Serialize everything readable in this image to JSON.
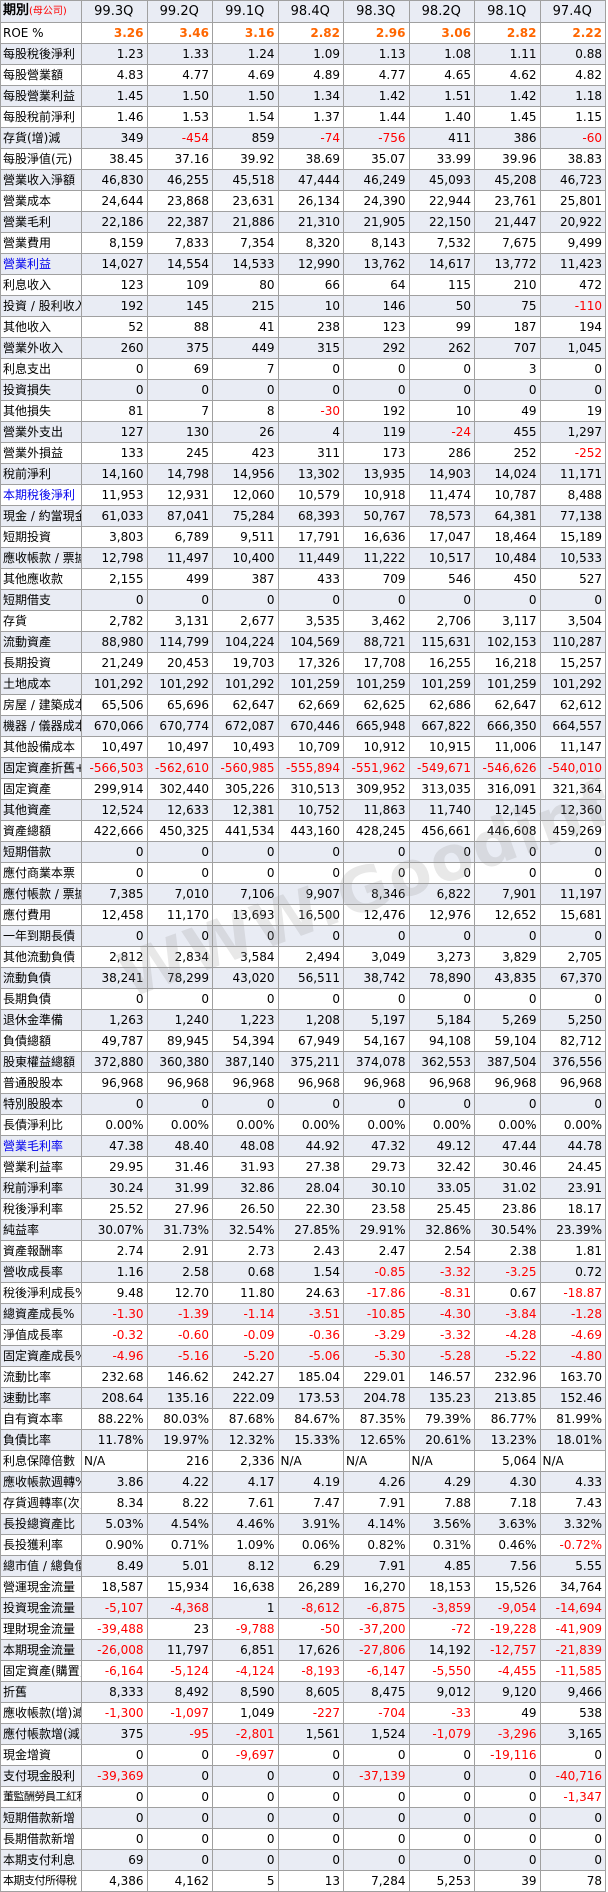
{
  "header": {
    "label": "期別",
    "sublabel": "(母公司)",
    "periods": [
      "99.3Q",
      "99.2Q",
      "99.1Q",
      "98.4Q",
      "98.3Q",
      "98.2Q",
      "98.1Q",
      "97.4Q"
    ]
  },
  "watermark": "WWW.Goodinfo.org",
  "colors": {
    "accent_orange": "#ff6600",
    "negative_red": "#ff0000",
    "link_blue": "#0000ee",
    "alt_row": "#e9ecf4"
  },
  "rows": [
    {
      "label": "ROE %",
      "values": [
        "3.26",
        "3.46",
        "3.16",
        "2.82",
        "2.96",
        "3.06",
        "2.82",
        "2.22"
      ],
      "roe": true
    },
    {
      "label": "每股稅後淨利",
      "values": [
        "1.23",
        "1.33",
        "1.24",
        "1.09",
        "1.13",
        "1.08",
        "1.11",
        "0.88"
      ]
    },
    {
      "label": "每股營業額",
      "values": [
        "4.83",
        "4.77",
        "4.69",
        "4.89",
        "4.77",
        "4.65",
        "4.62",
        "4.82"
      ]
    },
    {
      "label": "每股營業利益",
      "values": [
        "1.45",
        "1.50",
        "1.50",
        "1.34",
        "1.42",
        "1.51",
        "1.42",
        "1.18"
      ]
    },
    {
      "label": "每股稅前淨利",
      "values": [
        "1.46",
        "1.53",
        "1.54",
        "1.37",
        "1.44",
        "1.40",
        "1.45",
        "1.15"
      ]
    },
    {
      "label": "存貨(增)減",
      "values": [
        "349",
        "-454",
        "859",
        "-74",
        "-756",
        "411",
        "386",
        "-60"
      ]
    },
    {
      "label": "每股淨值(元)",
      "values": [
        "38.45",
        "37.16",
        "39.92",
        "38.69",
        "35.07",
        "33.99",
        "39.96",
        "38.83"
      ]
    },
    {
      "label": "營業收入淨額",
      "values": [
        "46,830",
        "46,255",
        "45,518",
        "47,444",
        "46,249",
        "45,093",
        "45,208",
        "46,723"
      ]
    },
    {
      "label": "營業成本",
      "values": [
        "24,644",
        "23,868",
        "23,631",
        "26,134",
        "24,390",
        "22,944",
        "23,761",
        "25,801"
      ]
    },
    {
      "label": "營業毛利",
      "values": [
        "22,186",
        "22,387",
        "21,886",
        "21,310",
        "21,905",
        "22,150",
        "21,447",
        "20,922"
      ]
    },
    {
      "label": "營業費用",
      "values": [
        "8,159",
        "7,833",
        "7,354",
        "8,320",
        "8,143",
        "7,532",
        "7,675",
        "9,499"
      ]
    },
    {
      "label": "營業利益",
      "values": [
        "14,027",
        "14,554",
        "14,533",
        "12,990",
        "13,762",
        "14,617",
        "13,772",
        "11,423"
      ],
      "blue": true
    },
    {
      "label": "利息收入",
      "values": [
        "123",
        "109",
        "80",
        "66",
        "64",
        "115",
        "210",
        "472"
      ]
    },
    {
      "label": "投資 / 股利收入",
      "values": [
        "192",
        "145",
        "215",
        "10",
        "146",
        "50",
        "75",
        "-110"
      ]
    },
    {
      "label": "其他收入",
      "values": [
        "52",
        "88",
        "41",
        "238",
        "123",
        "99",
        "187",
        "194"
      ]
    },
    {
      "label": "營業外收入",
      "values": [
        "260",
        "375",
        "449",
        "315",
        "292",
        "262",
        "707",
        "1,045"
      ]
    },
    {
      "label": "利息支出",
      "values": [
        "0",
        "69",
        "7",
        "0",
        "0",
        "0",
        "3",
        "0"
      ]
    },
    {
      "label": "投資損失",
      "values": [
        "0",
        "0",
        "0",
        "0",
        "0",
        "0",
        "0",
        "0"
      ]
    },
    {
      "label": "其他損失",
      "values": [
        "81",
        "7",
        "8",
        "-30",
        "192",
        "10",
        "49",
        "19"
      ]
    },
    {
      "label": "營業外支出",
      "values": [
        "127",
        "130",
        "26",
        "4",
        "119",
        "-24",
        "455",
        "1,297"
      ]
    },
    {
      "label": "營業外損益",
      "values": [
        "133",
        "245",
        "423",
        "311",
        "173",
        "286",
        "252",
        "-252"
      ]
    },
    {
      "label": "稅前淨利",
      "values": [
        "14,160",
        "14,798",
        "14,956",
        "13,302",
        "13,935",
        "14,903",
        "14,024",
        "11,171"
      ]
    },
    {
      "label": "本期稅後淨利",
      "values": [
        "11,953",
        "12,931",
        "12,060",
        "10,579",
        "10,918",
        "11,474",
        "10,787",
        "8,488"
      ],
      "blue": true
    },
    {
      "label": "現金 / 約當現金",
      "values": [
        "61,033",
        "87,041",
        "75,284",
        "68,393",
        "50,767",
        "78,573",
        "64,381",
        "77,138"
      ]
    },
    {
      "label": "短期投資",
      "values": [
        "3,803",
        "6,789",
        "9,511",
        "17,791",
        "16,636",
        "17,047",
        "18,464",
        "15,189"
      ]
    },
    {
      "label": "應收帳款 / 票據",
      "values": [
        "12,798",
        "11,497",
        "10,400",
        "11,449",
        "11,222",
        "10,517",
        "10,484",
        "10,533"
      ]
    },
    {
      "label": "其他應收款",
      "values": [
        "2,155",
        "499",
        "387",
        "433",
        "709",
        "546",
        "450",
        "527"
      ]
    },
    {
      "label": "短期借支",
      "values": [
        "0",
        "0",
        "0",
        "0",
        "0",
        "0",
        "0",
        "0"
      ]
    },
    {
      "label": "存貨",
      "values": [
        "2,782",
        "3,131",
        "2,677",
        "3,535",
        "3,462",
        "2,706",
        "3,117",
        "3,504"
      ]
    },
    {
      "label": "流動資產",
      "values": [
        "88,980",
        "114,799",
        "104,224",
        "104,569",
        "88,721",
        "115,631",
        "102,153",
        "110,287"
      ]
    },
    {
      "label": "長期投資",
      "values": [
        "21,249",
        "20,453",
        "19,703",
        "17,326",
        "17,708",
        "16,255",
        "16,218",
        "15,257"
      ]
    },
    {
      "label": "土地成本",
      "values": [
        "101,292",
        "101,292",
        "101,292",
        "101,259",
        "101,259",
        "101,259",
        "101,259",
        "101,292"
      ]
    },
    {
      "label": "房屋 / 建築成本",
      "values": [
        "65,506",
        "65,696",
        "62,647",
        "62,669",
        "62,625",
        "62,686",
        "62,647",
        "62,612"
      ]
    },
    {
      "label": "機器 / 儀器成本",
      "values": [
        "670,066",
        "670,774",
        "672,087",
        "670,446",
        "665,948",
        "667,822",
        "666,350",
        "664,557"
      ]
    },
    {
      "label": "其他設備成本",
      "values": [
        "10,497",
        "10,497",
        "10,493",
        "10,709",
        "10,912",
        "10,915",
        "11,006",
        "11,147"
      ]
    },
    {
      "label": "固定資產折舊+",
      "values": [
        "-566,503",
        "-562,610",
        "-560,985",
        "-555,894",
        "-551,962",
        "-549,671",
        "-546,626",
        "-540,010"
      ]
    },
    {
      "label": "固定資產",
      "values": [
        "299,914",
        "302,440",
        "305,226",
        "310,513",
        "309,952",
        "313,035",
        "316,091",
        "321,364"
      ]
    },
    {
      "label": "其他資產",
      "values": [
        "12,524",
        "12,633",
        "12,381",
        "10,752",
        "11,863",
        "11,740",
        "12,145",
        "12,360"
      ]
    },
    {
      "label": "資產總額",
      "values": [
        "422,666",
        "450,325",
        "441,534",
        "443,160",
        "428,245",
        "456,661",
        "446,608",
        "459,269"
      ]
    },
    {
      "label": "短期借款",
      "values": [
        "0",
        "0",
        "0",
        "0",
        "0",
        "0",
        "0",
        "0"
      ]
    },
    {
      "label": "應付商業本票",
      "values": [
        "0",
        "0",
        "0",
        "0",
        "0",
        "0",
        "0",
        "0"
      ]
    },
    {
      "label": "應付帳款 / 票據",
      "values": [
        "7,385",
        "7,010",
        "7,106",
        "9,907",
        "8,346",
        "6,822",
        "7,901",
        "11,197"
      ]
    },
    {
      "label": "應付費用",
      "values": [
        "12,458",
        "11,170",
        "13,693",
        "16,500",
        "12,476",
        "12,976",
        "12,652",
        "15,681"
      ]
    },
    {
      "label": "一年到期長債",
      "values": [
        "0",
        "0",
        "0",
        "0",
        "0",
        "0",
        "0",
        "0"
      ]
    },
    {
      "label": "其他流動負債",
      "values": [
        "2,812",
        "2,834",
        "3,584",
        "2,494",
        "3,049",
        "3,273",
        "3,829",
        "2,705"
      ]
    },
    {
      "label": "流動負債",
      "values": [
        "38,241",
        "78,299",
        "43,020",
        "56,511",
        "38,742",
        "78,890",
        "43,835",
        "67,370"
      ]
    },
    {
      "label": "長期負債",
      "values": [
        "0",
        "0",
        "0",
        "0",
        "0",
        "0",
        "0",
        "0"
      ]
    },
    {
      "label": "退休金準備",
      "values": [
        "1,263",
        "1,240",
        "1,223",
        "1,208",
        "5,197",
        "5,184",
        "5,269",
        "5,250"
      ]
    },
    {
      "label": "負債總額",
      "values": [
        "49,787",
        "89,945",
        "54,394",
        "67,949",
        "54,167",
        "94,108",
        "59,104",
        "82,712"
      ]
    },
    {
      "label": "股東權益總額",
      "values": [
        "372,880",
        "360,380",
        "387,140",
        "375,211",
        "374,078",
        "362,553",
        "387,504",
        "376,556"
      ]
    },
    {
      "label": "普通股股本",
      "values": [
        "96,968",
        "96,968",
        "96,968",
        "96,968",
        "96,968",
        "96,968",
        "96,968",
        "96,968"
      ]
    },
    {
      "label": "特別股股本",
      "values": [
        "0",
        "0",
        "0",
        "0",
        "0",
        "0",
        "0",
        "0"
      ]
    },
    {
      "label": "長債淨利比",
      "values": [
        "0.00%",
        "0.00%",
        "0.00%",
        "0.00%",
        "0.00%",
        "0.00%",
        "0.00%",
        "0.00%"
      ]
    },
    {
      "label": "營業毛利率",
      "values": [
        "47.38",
        "48.40",
        "48.08",
        "44.92",
        "47.32",
        "49.12",
        "47.44",
        "44.78"
      ],
      "blue": true
    },
    {
      "label": "營業利益率",
      "values": [
        "29.95",
        "31.46",
        "31.93",
        "27.38",
        "29.73",
        "32.42",
        "30.46",
        "24.45"
      ]
    },
    {
      "label": "稅前淨利率",
      "values": [
        "30.24",
        "31.99",
        "32.86",
        "28.04",
        "30.10",
        "33.05",
        "31.02",
        "23.91"
      ]
    },
    {
      "label": "稅後淨利率",
      "values": [
        "25.52",
        "27.96",
        "26.50",
        "22.30",
        "23.58",
        "25.45",
        "23.86",
        "18.17"
      ]
    },
    {
      "label": "純益率",
      "values": [
        "30.07%",
        "31.73%",
        "32.54%",
        "27.85%",
        "29.91%",
        "32.86%",
        "30.54%",
        "23.39%"
      ]
    },
    {
      "label": "資產報酬率",
      "values": [
        "2.74",
        "2.91",
        "2.73",
        "2.43",
        "2.47",
        "2.54",
        "2.38",
        "1.81"
      ]
    },
    {
      "label": "營收成長率",
      "values": [
        "1.16",
        "2.58",
        "0.68",
        "1.54",
        "-0.85",
        "-3.32",
        "-3.25",
        "0.72"
      ]
    },
    {
      "label": "稅後淨利成長%",
      "values": [
        "9.48",
        "12.70",
        "11.80",
        "24.63",
        "-17.86",
        "-8.31",
        "0.67",
        "-18.87"
      ]
    },
    {
      "label": "總資產成長%",
      "values": [
        "-1.30",
        "-1.39",
        "-1.14",
        "-3.51",
        "-10.85",
        "-4.30",
        "-3.84",
        "-1.28"
      ]
    },
    {
      "label": "淨值成長率",
      "values": [
        "-0.32",
        "-0.60",
        "-0.09",
        "-0.36",
        "-3.29",
        "-3.32",
        "-4.28",
        "-4.69"
      ]
    },
    {
      "label": "固定資產成長%",
      "values": [
        "-4.96",
        "-5.16",
        "-5.20",
        "-5.06",
        "-5.30",
        "-5.28",
        "-5.22",
        "-4.80"
      ]
    },
    {
      "label": "流動比率",
      "values": [
        "232.68",
        "146.62",
        "242.27",
        "185.04",
        "229.01",
        "146.57",
        "232.96",
        "163.70"
      ]
    },
    {
      "label": "速動比率",
      "values": [
        "208.64",
        "135.16",
        "222.09",
        "173.53",
        "204.78",
        "135.23",
        "213.85",
        "152.46"
      ]
    },
    {
      "label": "自有資本率",
      "values": [
        "88.22%",
        "80.03%",
        "87.68%",
        "84.67%",
        "87.35%",
        "79.39%",
        "86.77%",
        "81.99%"
      ]
    },
    {
      "label": "負債比率",
      "values": [
        "11.78%",
        "19.97%",
        "12.32%",
        "15.33%",
        "12.65%",
        "20.61%",
        "13.23%",
        "18.01%"
      ]
    },
    {
      "label": "利息保障倍數",
      "values": [
        "N/A",
        "216",
        "2,336",
        "N/A",
        "N/A",
        "N/A",
        "5,064",
        "N/A"
      ]
    },
    {
      "label": "應收帳款週轉%",
      "values": [
        "3.86",
        "4.22",
        "4.17",
        "4.19",
        "4.26",
        "4.29",
        "4.30",
        "4.33"
      ]
    },
    {
      "label": "存貨週轉率(次)",
      "values": [
        "8.34",
        "8.22",
        "7.61",
        "7.47",
        "7.91",
        "7.88",
        "7.18",
        "7.43"
      ]
    },
    {
      "label": "長投總資產比",
      "values": [
        "5.03%",
        "4.54%",
        "4.46%",
        "3.91%",
        "4.14%",
        "3.56%",
        "3.63%",
        "3.32%"
      ]
    },
    {
      "label": "長投獲利率",
      "values": [
        "0.90%",
        "0.71%",
        "1.09%",
        "0.06%",
        "0.82%",
        "0.31%",
        "0.46%",
        "-0.72%"
      ]
    },
    {
      "label": "總市值 / 總負債",
      "values": [
        "8.49",
        "5.01",
        "8.12",
        "6.29",
        "7.91",
        "4.85",
        "7.56",
        "5.55"
      ]
    },
    {
      "label": "營運現金流量",
      "values": [
        "18,587",
        "15,934",
        "16,638",
        "26,289",
        "16,270",
        "18,153",
        "15,526",
        "34,764"
      ]
    },
    {
      "label": "投資現金流量",
      "values": [
        "-5,107",
        "-4,368",
        "1",
        "-8,612",
        "-6,875",
        "-3,859",
        "-9,054",
        "-14,694"
      ]
    },
    {
      "label": "理財現金流量",
      "values": [
        "-39,488",
        "23",
        "-9,788",
        "-50",
        "-37,200",
        "-72",
        "-19,228",
        "-41,909"
      ]
    },
    {
      "label": "本期現金流量",
      "values": [
        "-26,008",
        "11,797",
        "6,851",
        "17,626",
        "-27,806",
        "14,192",
        "-12,757",
        "-21,839"
      ]
    },
    {
      "label": "固定資產(購置)",
      "values": [
        "-6,164",
        "-5,124",
        "-4,124",
        "-8,193",
        "-6,147",
        "-5,550",
        "-4,455",
        "-11,585"
      ]
    },
    {
      "label": "折舊",
      "values": [
        "8,333",
        "8,492",
        "8,590",
        "8,605",
        "8,475",
        "9,012",
        "9,120",
        "9,466"
      ]
    },
    {
      "label": "應收帳款(增)減",
      "values": [
        "-1,300",
        "-1,097",
        "1,049",
        "-227",
        "-704",
        "-33",
        "49",
        "538"
      ]
    },
    {
      "label": "應付帳款增(減)",
      "values": [
        "375",
        "-95",
        "-2,801",
        "1,561",
        "1,524",
        "-1,079",
        "-3,296",
        "3,165"
      ]
    },
    {
      "label": "現金增資",
      "values": [
        "0",
        "0",
        "-9,697",
        "0",
        "0",
        "0",
        "-19,116",
        "0"
      ]
    },
    {
      "label": "支付現金股利",
      "values": [
        "-39,369",
        "0",
        "0",
        "0",
        "-37,139",
        "0",
        "0",
        "-40,716"
      ]
    },
    {
      "label": "董監酬勞員工紅利",
      "values": [
        "0",
        "0",
        "0",
        "0",
        "0",
        "0",
        "0",
        "-1,347"
      ],
      "smalllabel": true
    },
    {
      "label": "短期借款新增",
      "values": [
        "0",
        "0",
        "0",
        "0",
        "0",
        "0",
        "0",
        "0"
      ]
    },
    {
      "label": "長期借款新增",
      "values": [
        "0",
        "0",
        "0",
        "0",
        "0",
        "0",
        "0",
        "0"
      ]
    },
    {
      "label": "本期支付利息",
      "values": [
        "69",
        "0",
        "0",
        "0",
        "0",
        "0",
        "0",
        "0"
      ]
    },
    {
      "label": "本期支付所得稅",
      "values": [
        "4,386",
        "4,162",
        "5",
        "13",
        "7,284",
        "5,253",
        "39",
        "78"
      ],
      "smalllabel": true
    }
  ]
}
